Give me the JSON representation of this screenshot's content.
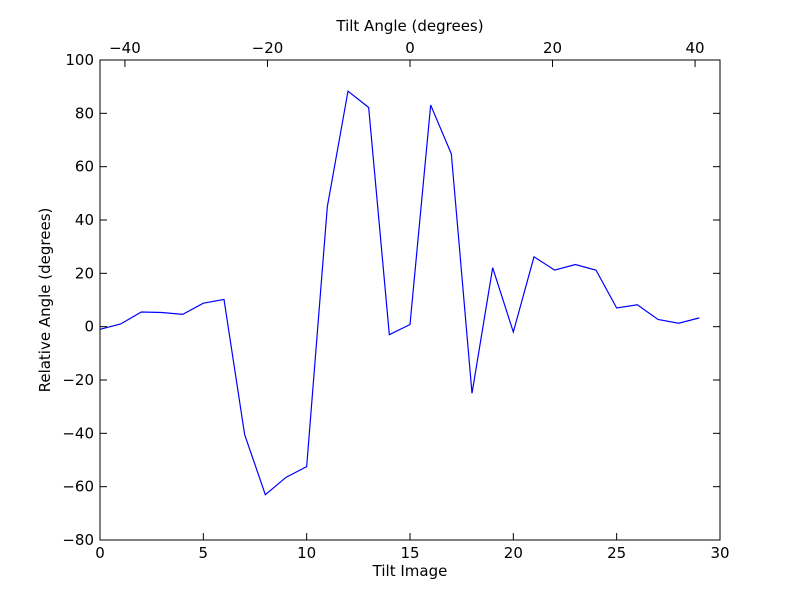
{
  "chart_data": {
    "type": "line",
    "title": "",
    "xlabel": "Tilt Image",
    "ylabel": "Relative Angle (degrees)",
    "top_xlabel": "Tilt Angle (degrees)",
    "xlim": [
      0,
      30
    ],
    "ylim": [
      -80,
      100
    ],
    "top_xlim": [
      -43.5,
      43.5
    ],
    "grid": false,
    "line_color": "#0000ff",
    "x_ticks": [
      0,
      5,
      10,
      15,
      20,
      25,
      30
    ],
    "x_tick_labels": [
      "0",
      "5",
      "10",
      "15",
      "20",
      "25",
      "30"
    ],
    "y_ticks": [
      -80,
      -60,
      -40,
      -20,
      0,
      20,
      40,
      60,
      80,
      100
    ],
    "y_tick_labels": [
      "−80",
      "−60",
      "−40",
      "−20",
      "0",
      "20",
      "40",
      "60",
      "80",
      "100"
    ],
    "top_ticks": [
      -40,
      -20,
      0,
      20,
      40
    ],
    "top_tick_labels": [
      "−40",
      "−20",
      "0",
      "20",
      "40"
    ],
    "series": [
      {
        "x": [
          0,
          1,
          2,
          3,
          4,
          5,
          6,
          7,
          8,
          9,
          10,
          11,
          12,
          13,
          14,
          15,
          16,
          17,
          18,
          19,
          20,
          21,
          22,
          23,
          24,
          25,
          26,
          27,
          28,
          29
        ],
        "y": [
          -1,
          1,
          5.5,
          5.3,
          4.6,
          8.8,
          10.2,
          -40.5,
          -63,
          -56.5,
          -52.5,
          45,
          88.3,
          82.2,
          -3,
          0.8,
          83.1,
          64.8,
          -25,
          22.1,
          -2,
          26.2,
          21.2,
          23.3,
          21.2,
          7,
          8.2,
          2.7,
          1.3,
          3.3
        ]
      }
    ]
  }
}
